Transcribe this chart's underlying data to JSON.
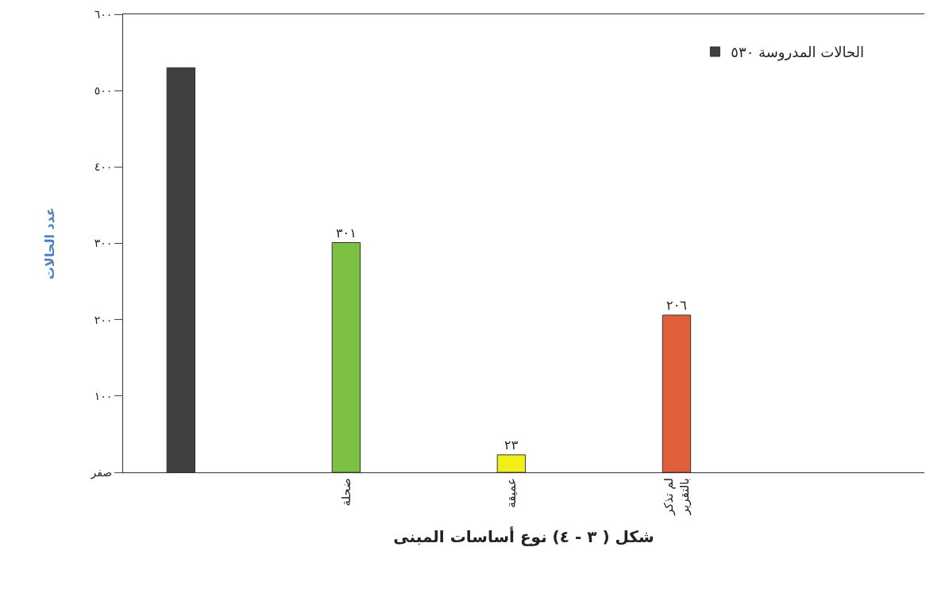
{
  "chart_data": {
    "type": "bar",
    "xlabel": "شكل ( ٣ - ٤) نوع أساسات المبنى",
    "ylabel": "عدد الحالات",
    "categories": [
      null,
      "ضحلة",
      "عميقة",
      "لم تذكر بالتقرير",
      null
    ],
    "series": [
      {
        "name": "الحالات المدروسة ٥٣٠",
        "colors": [
          "#404040",
          "#7dc142",
          "#f2ee1a",
          "#e0603c",
          null
        ],
        "values": [
          530,
          301,
          23,
          206,
          null
        ],
        "value_labels": [
          null,
          "٣٠١",
          "٢٣",
          "٢٠٦",
          null
        ]
      }
    ],
    "ylim": [
      0,
      600
    ],
    "yticks": [
      {
        "value": 0,
        "label": "صفر"
      },
      {
        "value": 100,
        "label": "١٠٠"
      },
      {
        "value": 200,
        "label": "٢٠٠"
      },
      {
        "value": 300,
        "label": "٣٠٠"
      },
      {
        "value": 400,
        "label": "٤٠٠"
      },
      {
        "value": 500,
        "label": "٥٠٠"
      },
      {
        "value": 600,
        "label": "٦٠٠"
      }
    ],
    "grid": false,
    "legend": "top right"
  }
}
